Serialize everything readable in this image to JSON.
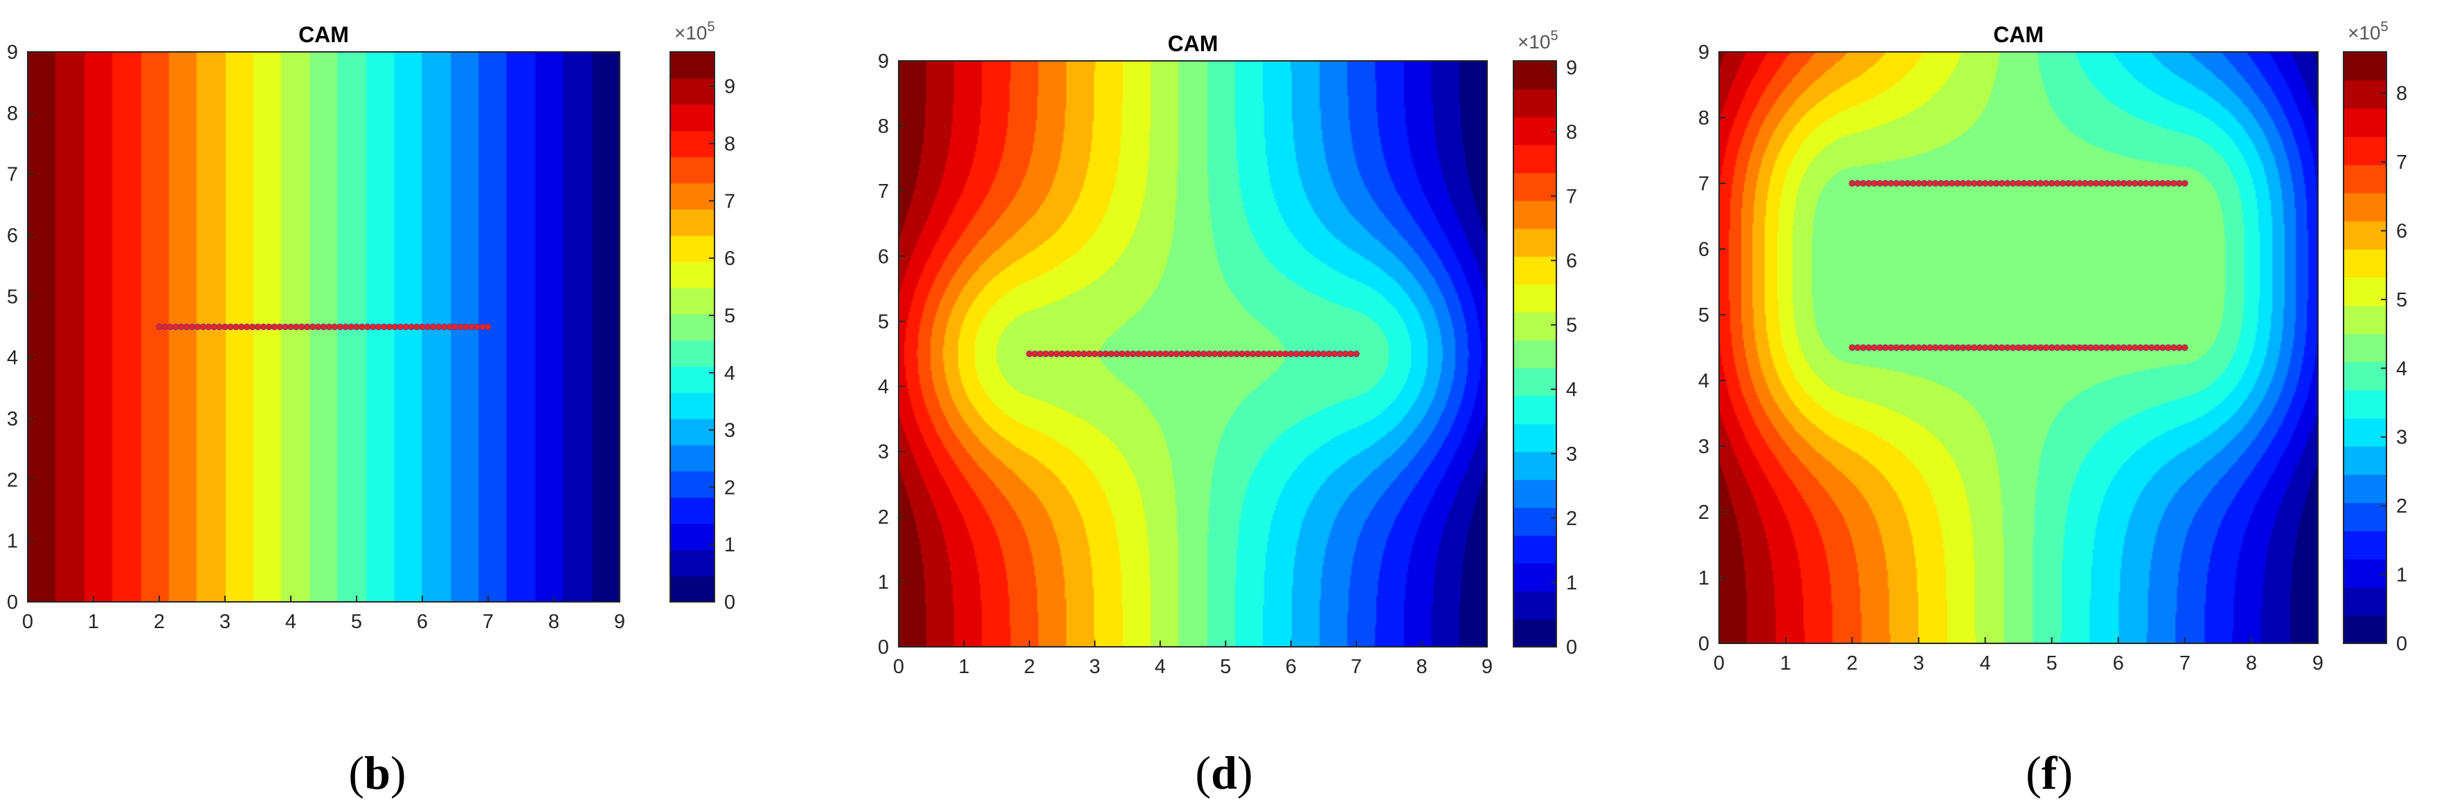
{
  "chart_data": [
    {
      "type": "heatmap",
      "panel_label": "b",
      "title": "CAM",
      "xlim": [
        0,
        9
      ],
      "ylim": [
        0,
        9
      ],
      "x_ticks": [
        0,
        1,
        2,
        3,
        4,
        5,
        6,
        7,
        8,
        9
      ],
      "y_ticks": [
        0,
        1,
        2,
        3,
        4,
        5,
        6,
        7,
        8,
        9
      ],
      "colorbar": {
        "range": [
          0,
          9.6
        ],
        "ticks": [
          0,
          1,
          2,
          3,
          4,
          5,
          6,
          7,
          8,
          9
        ],
        "exponent_label": "×10",
        "exponent": "5",
        "levels": 21
      },
      "fractures": [
        {
          "x1": 2,
          "y1": 4.5,
          "x2": 7,
          "y2": 4.5
        }
      ],
      "field": "linear"
    },
    {
      "type": "heatmap",
      "panel_label": "d",
      "title": "CAM",
      "xlim": [
        0,
        9
      ],
      "ylim": [
        0,
        9
      ],
      "x_ticks": [
        0,
        1,
        2,
        3,
        4,
        5,
        6,
        7,
        8,
        9
      ],
      "y_ticks": [
        0,
        1,
        2,
        3,
        4,
        5,
        6,
        7,
        8,
        9
      ],
      "colorbar": {
        "range": [
          0,
          9.1
        ],
        "ticks": [
          0,
          1,
          2,
          3,
          4,
          5,
          6,
          7,
          8,
          9
        ],
        "exponent_label": "×10",
        "exponent": "5",
        "levels": 21
      },
      "fractures": [
        {
          "x1": 2,
          "y1": 4.5,
          "x2": 7,
          "y2": 4.5
        }
      ],
      "field": "fractured"
    },
    {
      "type": "heatmap",
      "panel_label": "f",
      "title": "CAM",
      "xlim": [
        0,
        9
      ],
      "ylim": [
        0,
        9
      ],
      "x_ticks": [
        0,
        1,
        2,
        3,
        4,
        5,
        6,
        7,
        8,
        9
      ],
      "y_ticks": [
        0,
        1,
        2,
        3,
        4,
        5,
        6,
        7,
        8,
        9
      ],
      "colorbar": {
        "range": [
          0,
          8.6
        ],
        "ticks": [
          0,
          1,
          2,
          3,
          4,
          5,
          6,
          7,
          8
        ],
        "exponent_label": "×10",
        "exponent": "5",
        "levels": 21
      },
      "fractures": [
        {
          "x1": 2,
          "y1": 4.5,
          "x2": 7,
          "y2": 4.5
        },
        {
          "x1": 2,
          "y1": 7,
          "x2": 7,
          "y2": 7
        }
      ],
      "field": "fractured"
    }
  ]
}
